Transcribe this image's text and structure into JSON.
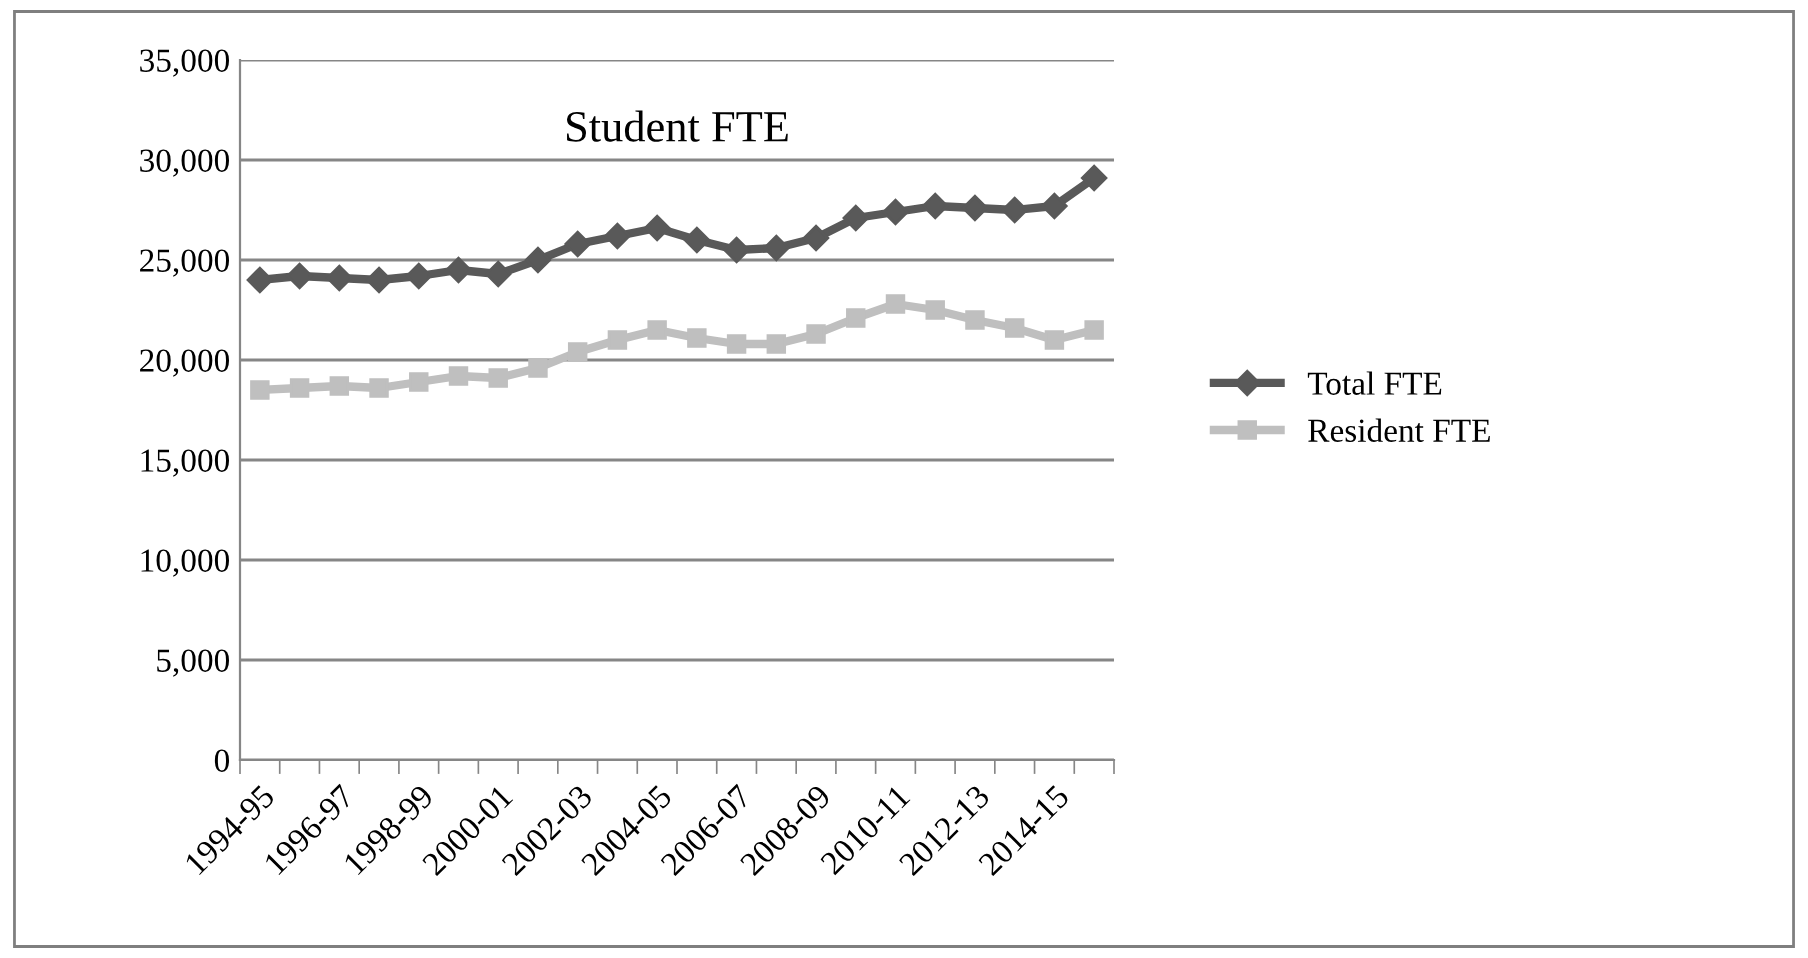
{
  "chart_data": {
    "type": "line",
    "title": "Student FTE",
    "categories": [
      "1994-95",
      null,
      "1996-97",
      null,
      "1998-99",
      null,
      "2000-01",
      null,
      "2002-03",
      null,
      "2004-05",
      null,
      "2006-07",
      null,
      "2008-09",
      null,
      "2010-11",
      null,
      "2012-13",
      null,
      "2014-15",
      null
    ],
    "series": [
      {
        "name": "Total FTE",
        "color": "#595959",
        "marker": "diamond",
        "values": [
          24000,
          24200,
          24100,
          24000,
          24200,
          24500,
          24300,
          25000,
          25800,
          26200,
          26600,
          26000,
          25500,
          25600,
          26100,
          27100,
          27400,
          27700,
          27600,
          27500,
          27700,
          29100
        ]
      },
      {
        "name": "Resident FTE",
        "color": "#bfbfbf",
        "marker": "square",
        "values": [
          18500,
          18600,
          18700,
          18600,
          18900,
          19200,
          19100,
          19600,
          20400,
          21000,
          21500,
          21100,
          20800,
          20800,
          21300,
          22100,
          22800,
          22500,
          22000,
          21600,
          21000,
          21500
        ]
      }
    ],
    "ylim": [
      0,
      35000
    ],
    "yticks": [
      {
        "value": 0,
        "label": "0"
      },
      {
        "value": 5000,
        "label": "5,000"
      },
      {
        "value": 10000,
        "label": "10,000"
      },
      {
        "value": 15000,
        "label": "15,000"
      },
      {
        "value": 20000,
        "label": "20,000"
      },
      {
        "value": 25000,
        "label": "25,000"
      },
      {
        "value": 30000,
        "label": "30,000"
      },
      {
        "value": 35000,
        "label": "35,000"
      }
    ],
    "grid": "y",
    "legend": "right"
  }
}
